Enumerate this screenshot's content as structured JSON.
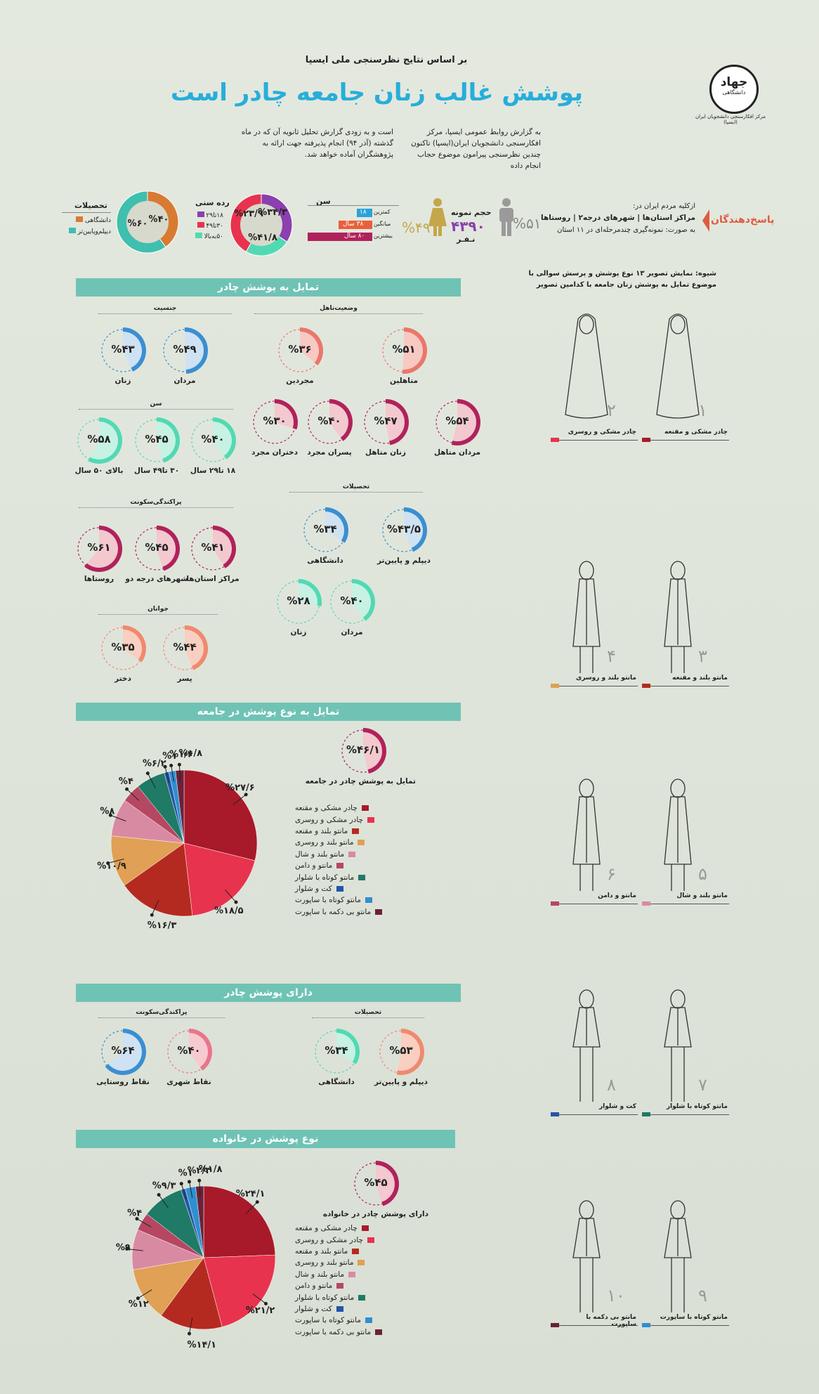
{
  "header": {
    "kicker": "بر اساس نتایج نظرسنجی ملی ایسپا",
    "title": "پوشش غالب زنان جامعه چادر است",
    "logo_text": "جهاد",
    "logo_sub": "دانشگاهی",
    "logo_caption": "مرکز افکارسنجی دانشجویان ایران (ایسپا)",
    "intro_right": "به گزارش روابط عمومی ایسپا، مرکز افکارسنجی دانشجویان ایران(ایسپا) تاکنون چندین نظرسنجی پیرامون موضوع حجاب انجام داده",
    "intro_left": "است و به زودی گزارش تحلیل ثانویه آن که در ماه گذشته (آذر ۹۴) انجام پذیرفته جهت ارائه به پژوهشگران آماده خواهد شد."
  },
  "respondents": {
    "label": "پاسخ‌دهندگان",
    "scope": "ازکلیه مردم ایران در:",
    "places": "مراکز استان‌ها | شهرهای درجه۲ | روستاها",
    "method": "به صورت: نمونه‌گیری چندمرحله‌ای در ۱۱ استان",
    "men_pct": "%۵۱",
    "women_pct": "%۴۹",
    "sample_label": "حجم نمونه",
    "sample_value": "۴۳۹۰",
    "sample_unit": "نـفـر",
    "age_title": "سن",
    "age_min_label": "کمترین",
    "age_min": "۱۸",
    "age_mid_label": "میانگین",
    "age_mid": "۳۸ سال",
    "age_max_label": "بیشترین",
    "age_max": "۸۰ سال",
    "agegroup_title": "رده سنی",
    "agegroup_items": [
      "۱۸تا۲۹",
      "۳۰تا۴۹",
      "۵۰به‌بالا"
    ],
    "agegroup_values": [
      "%۳۴/۳",
      "%۲۳/۹",
      "%۴۱/۸"
    ],
    "agegroup_fracs": [
      0.343,
      0.239,
      0.418
    ],
    "edu_title": "تحصیلات",
    "edu_items": [
      "دانشگاهی",
      "دیپلم‌وپایین‌تر"
    ],
    "edu_values": [
      "%۴۰",
      "%۶۰"
    ],
    "edu_fracs": [
      0.4,
      0.6
    ]
  },
  "method": {
    "text1": "شیوه: نمایش تصویر ۱۳ نوع پوشش و پرسش سوالی با",
    "text2": "موضوع تمایل به پوشش زنان جامعه با کدامین تصویر"
  },
  "sections": {
    "s1": "تمایل به پوشش چادر",
    "s2": "تمایل به نوع پوشش در جامعه",
    "s3": "دارای پوشش چادر",
    "s4": "نوع پوشش در خانواده"
  },
  "groups": {
    "gender": "جنسیت",
    "marital": "وضعیت‌تاهل",
    "age": "سن",
    "education": "تحصیلات",
    "residence": "پراکندگی‌سکونت",
    "youth": "جوانان",
    "education2": "تحصیلات",
    "residence2": "پراکندگی‌سکونت"
  },
  "donuts": [
    {
      "id": "men",
      "label": "مردان",
      "value": "%۴۹",
      "frac": 0.49,
      "color": "#3a8fd1",
      "fill": "#cfe2f3"
    },
    {
      "id": "women",
      "label": "زنان",
      "value": "%۴۳",
      "frac": 0.43,
      "color": "#3a8fd1",
      "fill": "#cfe2f3"
    },
    {
      "id": "married",
      "label": "متاهلین",
      "value": "%۵۱",
      "frac": 0.51,
      "color": "#e9776b",
      "fill": "#f7c9c2"
    },
    {
      "id": "single",
      "label": "مجردین",
      "value": "%۳۶",
      "frac": 0.36,
      "color": "#e9776b",
      "fill": "#f7c9c2"
    },
    {
      "id": "married-men",
      "label": "مردان متاهل",
      "value": "%۵۴",
      "frac": 0.54,
      "color": "#b0225b",
      "fill": "#f3c8cf"
    },
    {
      "id": "married-women",
      "label": "زنان متاهل",
      "value": "%۴۷",
      "frac": 0.47,
      "color": "#b0225b",
      "fill": "#f3c8cf"
    },
    {
      "id": "single-boys",
      "label": "پسران مجرد",
      "value": "%۴۰",
      "frac": 0.4,
      "color": "#b0225b",
      "fill": "#f3c8cf"
    },
    {
      "id": "single-girls",
      "label": "دختران مجرد",
      "value": "%۳۰",
      "frac": 0.3,
      "color": "#b0225b",
      "fill": "#f3c8cf"
    },
    {
      "id": "age-18-29",
      "label": "۱۸ تا۲۹ سال",
      "value": "%۴۰",
      "frac": 0.4,
      "color": "#52d9b3",
      "fill": "#c6f1e3"
    },
    {
      "id": "age-30-49",
      "label": "۳۰ تا۴۹ سال",
      "value": "%۴۵",
      "frac": 0.45,
      "color": "#52d9b3",
      "fill": "#c6f1e3"
    },
    {
      "id": "age-50",
      "label": "بالای ۵۰ سال",
      "value": "%۵۸",
      "frac": 0.58,
      "color": "#52d9b3",
      "fill": "#c6f1e3"
    },
    {
      "id": "edu-diploma",
      "label": "دیپلم و پایین‌تر",
      "value": "%۴۳/۵",
      "frac": 0.435,
      "color": "#3a8fd1",
      "fill": "#cfe2f3"
    },
    {
      "id": "edu-univ",
      "label": "دانشگاهی",
      "value": "%۳۴",
      "frac": 0.34,
      "color": "#3a8fd1",
      "fill": "#cfe2f3"
    },
    {
      "id": "res-centers",
      "label": "مراکز استان‌ها",
      "value": "%۴۱",
      "frac": 0.41,
      "color": "#b0225b",
      "fill": "#f3c8cf"
    },
    {
      "id": "res-cities2",
      "label": "شهرهای درجه دو",
      "value": "%۴۵",
      "frac": 0.45,
      "color": "#b0225b",
      "fill": "#f3c8cf"
    },
    {
      "id": "res-villages",
      "label": "روستاها",
      "value": "%۶۱",
      "frac": 0.61,
      "color": "#b0225b",
      "fill": "#f3c8cf"
    },
    {
      "id": "youth-men",
      "label": "مردان",
      "value": "%۴۰",
      "frac": 0.4,
      "color": "#52d9b3",
      "fill": "#c6f1e3"
    },
    {
      "id": "youth-women",
      "label": "زنان",
      "value": "%۲۸",
      "frac": 0.28,
      "color": "#52d9b3",
      "fill": "#c6f1e3"
    },
    {
      "id": "youth-boy",
      "label": "پسر",
      "value": "%۴۴",
      "frac": 0.44,
      "color": "#ef8a6e",
      "fill": "#f9cfc1"
    },
    {
      "id": "youth-girl",
      "label": "دختر",
      "value": "%۳۵",
      "frac": 0.35,
      "color": "#ef8a6e",
      "fill": "#f9cfc1"
    },
    {
      "id": "society-chador",
      "label": "تمایل به پوشش چادر در جامعه",
      "value": "%۴۶/۱",
      "frac": 0.461,
      "color": "#b0225b",
      "fill": "#f3c8cf"
    },
    {
      "id": "have-diploma",
      "label": "دیپلم و پایین‌تر",
      "value": "%۵۳",
      "frac": 0.53,
      "color": "#ef8a6e",
      "fill": "#f9cfc1"
    },
    {
      "id": "have-univ",
      "label": "دانشگاهی",
      "value": "%۳۴",
      "frac": 0.34,
      "color": "#52d9b3",
      "fill": "#c6f1e3"
    },
    {
      "id": "have-urban",
      "label": "نقاط شهری",
      "value": "%۴۰",
      "frac": 0.4,
      "color": "#e9758b",
      "fill": "#f7c9d0"
    },
    {
      "id": "have-rural",
      "label": "نقاط روستایی",
      "value": "%۶۴",
      "frac": 0.64,
      "color": "#3a8fd1",
      "fill": "#cfe2f3"
    },
    {
      "id": "family-chador",
      "label": "دارای پوشش چادر در خانواده",
      "value": "%۴۵",
      "frac": 0.45,
      "color": "#b0225b",
      "fill": "#f3c8cf"
    }
  ],
  "legend_items": [
    {
      "label": "چادر مشکی و مقنعه",
      "color": "#a8192a"
    },
    {
      "label": "چادر مشکی و روسری",
      "color": "#e8334e"
    },
    {
      "label": "مانتو بلند و مقنعه",
      "color": "#b52a20"
    },
    {
      "label": "مانتو بلند و روسری",
      "color": "#e0a055"
    },
    {
      "label": "مانتو بلند و شال",
      "color": "#d98aa3"
    },
    {
      "label": "مانتو و دامن",
      "color": "#b64763"
    },
    {
      "label": "مانتو کوتاه با شلوار",
      "color": "#1f7a66"
    },
    {
      "label": "کت و شلوار",
      "color": "#2456a6"
    },
    {
      "label": "مانتو کوتاه با ساپورت",
      "color": "#2f8fd0"
    },
    {
      "label": "مانتو بی دکمه با ساپورت",
      "color": "#6b2138"
    }
  ],
  "chart_data": [
    {
      "type": "pie",
      "title": "تمایل به نوع پوشش در جامعه",
      "categories": [
        "چادر مشکی و مقنعه",
        "چادر مشکی و روسری",
        "مانتو بلند و مقنعه",
        "مانتو بلند و روسری",
        "مانتو بلند و شال",
        "مانتو و دامن",
        "مانتو کوتاه با شلوار",
        "کت و شلوار",
        "مانتو کوتاه با ساپورت",
        "مانتو بی دکمه با ساپورت"
      ],
      "values": [
        27.6,
        18.5,
        16.3,
        10.9,
        8,
        4,
        6.2,
        1,
        1.4,
        1.8
      ],
      "labels": [
        "%۲۷/۶",
        "%۱۸/۵",
        "%۱۶/۳",
        "%۱۰/۹",
        "%۸",
        "%۴",
        "%۶/۲",
        "%۱",
        "%۱/۴",
        "%۱/۸"
      ]
    },
    {
      "type": "pie",
      "title": "نوع پوشش در خانواده",
      "categories": [
        "چادر مشکی و مقنعه",
        "چادر مشکی و روسری",
        "مانتو بلند و مقنعه",
        "مانتو بلند و روسری",
        "مانتو بلند و شال",
        "مانتو و دامن",
        "مانتو کوتاه با شلوار",
        "کت و شلوار",
        "مانتو کوتاه با ساپورت",
        "مانتو بی دکمه با ساپورت"
      ],
      "values": [
        24.1,
        21.2,
        14.1,
        12,
        9,
        4,
        9.3,
        1,
        2.3,
        1.8
      ],
      "labels": [
        "%۲۴/۱",
        "%۲۱/۲",
        "%۱۴/۱",
        "%۱۲",
        "%۹",
        "%۴",
        "%۹/۳",
        "%۱",
        "%۲/۳",
        "%۱/۸"
      ]
    }
  ],
  "dresses": [
    {
      "num": "۱",
      "label": "چادر مشکی و مقنعه",
      "color": "#a8192a"
    },
    {
      "num": "۲",
      "label": "چادر مشکی و روسری",
      "color": "#e8334e"
    },
    {
      "num": "۳",
      "label": "مانتو بلند و مقنعه",
      "color": "#b52a20"
    },
    {
      "num": "۴",
      "label": "مانتو بلند و روسری",
      "color": "#e0a055"
    },
    {
      "num": "۵",
      "label": "مانتو بلند و شال",
      "color": "#d98aa3"
    },
    {
      "num": "۶",
      "label": "مانتو و دامن",
      "color": "#b64763"
    },
    {
      "num": "۷",
      "label": "مانتو کوتاه با شلوار",
      "color": "#1f7a66"
    },
    {
      "num": "۸",
      "label": "کت و شلوار",
      "color": "#2456a6"
    },
    {
      "num": "۹",
      "label": "مانتو کوتاه با ساپورت",
      "color": "#2f8fd0"
    },
    {
      "num": "۱۰",
      "label": "مانتو بی دکمه با ساپورت",
      "color": "#6b2138"
    }
  ]
}
